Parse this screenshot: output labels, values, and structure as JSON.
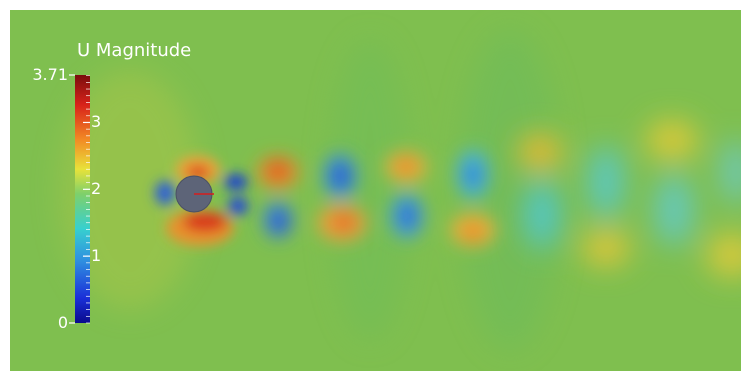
{
  "colorbar": {
    "title": "U Magnitude",
    "range_min": 0,
    "range_max": 3.71,
    "labels": [
      {
        "text": "3.71",
        "value": 3.71
      },
      {
        "text": "3",
        "value": 3
      },
      {
        "text": "2",
        "value": 2
      },
      {
        "text": "1",
        "value": 1
      },
      {
        "text": "0",
        "value": 0
      }
    ]
  },
  "colors": {
    "background_field": "#7fbf4f",
    "cylinder": "#5d6478",
    "arrow": "#d81c1c",
    "text": "#ffffff"
  },
  "icons": [
    "cylinder-obstacle",
    "velocity-arrow"
  ]
}
